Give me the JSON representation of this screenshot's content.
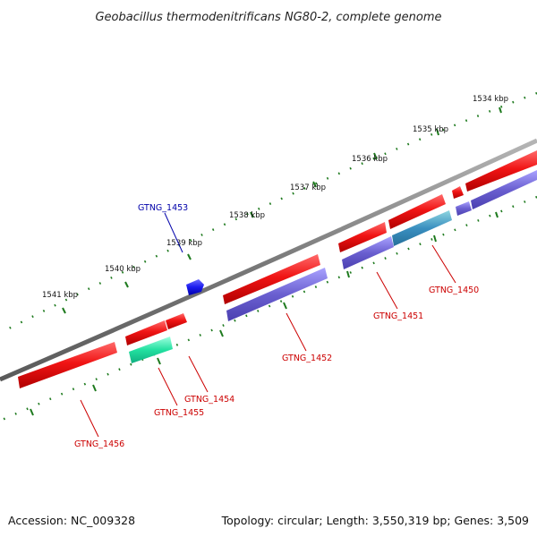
{
  "title": "Geobacillus thermodenitrificans NG80-2, complete genome",
  "footer": {
    "accession": "Accession: NC_009328",
    "summary": "Topology: circular; Length: 3,550,319 bp; Genes: 3,509"
  },
  "colors": {
    "backbone": "#808080",
    "tick": "#1e7a1e",
    "gene_forward": "#ee1111",
    "gene_reverse": "#6a5fd0",
    "gene_teal": "#3aa9b5",
    "gene_green": "#26e0a0",
    "gene_blue": "#1a1aee",
    "label_red": "#cc0000",
    "label_blue": "#0000aa"
  },
  "scale": {
    "unit": "kbp",
    "labels": [
      "1534 kbp",
      "1535 kbp",
      "1536 kbp",
      "1537 kbp",
      "1538 kbp",
      "1539 kbp",
      "1540 kbp",
      "1541 kbp"
    ]
  },
  "gene_labels": [
    "GTNG_1450",
    "GTNG_1451",
    "GTNG_1452",
    "GTNG_1453",
    "GTNG_1454",
    "GTNG_1455",
    "GTNG_1456"
  ]
}
